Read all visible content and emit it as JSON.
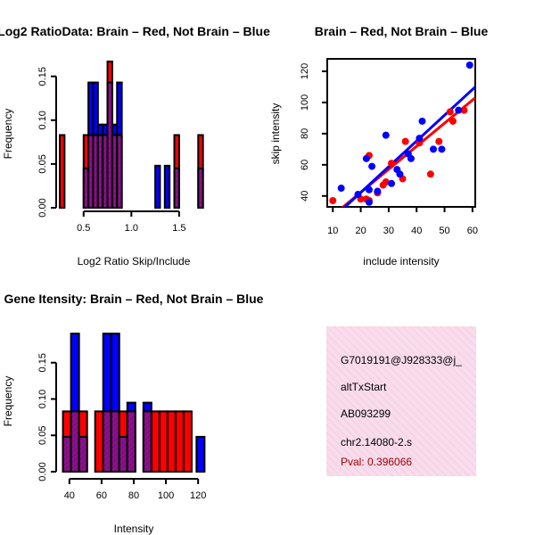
{
  "colors": {
    "red": "#ff0000",
    "blue": "#0000ff",
    "overlap": "#8b108b",
    "info_bg": "#f8dcec"
  },
  "chart_data": [
    {
      "type": "bar",
      "title": "Log2 RatioData: Brain – Red, Not Brain – Blue",
      "xlabel": "Log2 Ratio Skip/Include",
      "ylabel": "Frequency",
      "xlim": [
        0.25,
        1.8
      ],
      "ylim": [
        0,
        0.17
      ],
      "xticks": [
        "0.5",
        "1.0",
        "1.5"
      ],
      "xtick_values": [
        0.5,
        1.0,
        1.5
      ],
      "yticks": [
        "0.00",
        "0.05",
        "0.10",
        "0.15"
      ],
      "ytick_values": [
        0,
        0.05,
        0.1,
        0.15
      ],
      "bin_width": 0.05,
      "bins": [
        {
          "start": 0.25,
          "red": 0.083,
          "blue": 0
        },
        {
          "start": 0.5,
          "red": 0.083,
          "blue": 0.045
        },
        {
          "start": 0.55,
          "red": 0.083,
          "blue": 0.143
        },
        {
          "start": 0.6,
          "red": 0.083,
          "blue": 0.143
        },
        {
          "start": 0.65,
          "red": 0.083,
          "blue": 0.095
        },
        {
          "start": 0.7,
          "red": 0.083,
          "blue": 0.095
        },
        {
          "start": 0.75,
          "red": 0.167,
          "blue": 0.143
        },
        {
          "start": 0.8,
          "red": 0.083,
          "blue": 0.095
        },
        {
          "start": 0.85,
          "red": 0.083,
          "blue": 0.143
        },
        {
          "start": 1.25,
          "red": 0,
          "blue": 0.048
        },
        {
          "start": 1.35,
          "red": 0,
          "blue": 0.048
        },
        {
          "start": 1.45,
          "red": 0.083,
          "blue": 0.045
        },
        {
          "start": 1.7,
          "red": 0.083,
          "blue": 0.045
        }
      ]
    },
    {
      "type": "scatter",
      "title": "Brain – Red, Not Brain – Blue",
      "xlabel": "include intensity",
      "ylabel": "skip intensity",
      "xlim": [
        8,
        61
      ],
      "ylim": [
        33,
        128
      ],
      "xticks": [
        "10",
        "20",
        "30",
        "40",
        "50",
        "60"
      ],
      "xtick_values": [
        10,
        20,
        30,
        40,
        50,
        60
      ],
      "yticks": [
        "40",
        "60",
        "80",
        "100",
        "120"
      ],
      "ytick_values": [
        40,
        60,
        80,
        100,
        120
      ],
      "series": [
        {
          "name": "Brain",
          "color": "red",
          "points": [
            [
              10,
              37
            ],
            [
              20,
              38
            ],
            [
              22,
              38
            ],
            [
              23,
              37
            ],
            [
              23,
              66
            ],
            [
              26,
              42
            ],
            [
              28,
              47
            ],
            [
              29,
              49
            ],
            [
              31,
              61
            ],
            [
              35,
              51
            ],
            [
              36,
              75
            ],
            [
              41,
              74
            ],
            [
              45,
              54
            ],
            [
              48,
              75
            ],
            [
              52,
              94
            ],
            [
              53,
              88
            ],
            [
              57,
              95
            ]
          ],
          "fit": [
            [
              10,
              27.5
            ],
            [
              61,
              103
            ]
          ]
        },
        {
          "name": "Not Brain",
          "color": "blue",
          "points": [
            [
              13,
              45
            ],
            [
              19,
              41
            ],
            [
              22,
              64
            ],
            [
              23,
              44
            ],
            [
              23,
              36
            ],
            [
              24,
              59
            ],
            [
              26,
              43
            ],
            [
              29,
              79
            ],
            [
              31,
              48
            ],
            [
              33,
              57
            ],
            [
              34,
              54
            ],
            [
              37,
              67
            ],
            [
              38,
              64
            ],
            [
              41,
              77
            ],
            [
              42,
              88
            ],
            [
              46,
              70
            ],
            [
              49,
              70
            ],
            [
              55,
              95
            ],
            [
              59,
              124
            ]
          ],
          "fit": [
            [
              12,
              29
            ],
            [
              61,
              110
            ]
          ]
        }
      ]
    },
    {
      "type": "bar",
      "title": "Gene Itensity: Brain – Red, Not Brain – Blue",
      "xlabel": "Intensity",
      "ylabel": "Frequency",
      "xlim": [
        34,
        126
      ],
      "ylim": [
        0,
        0.2
      ],
      "xticks": [
        "40",
        "60",
        "80",
        "100",
        "120"
      ],
      "xtick_values": [
        40,
        60,
        80,
        100,
        120
      ],
      "yticks": [
        "0.00",
        "0.05",
        "0.10",
        "0.15"
      ],
      "ytick_values": [
        0,
        0.05,
        0.1,
        0.15
      ],
      "bin_width": 5,
      "bins": [
        {
          "start": 36,
          "red": 0.083,
          "blue": 0.048
        },
        {
          "start": 41,
          "red": 0.083,
          "blue": 0.19
        },
        {
          "start": 46,
          "red": 0.083,
          "blue": 0.048
        },
        {
          "start": 56,
          "red": 0.083,
          "blue": 0
        },
        {
          "start": 61,
          "red": 0.083,
          "blue": 0.19
        },
        {
          "start": 66,
          "red": 0.083,
          "blue": 0.19
        },
        {
          "start": 71,
          "red": 0.083,
          "blue": 0.048
        },
        {
          "start": 76,
          "red": 0.083,
          "blue": 0.095
        },
        {
          "start": 86,
          "red": 0.083,
          "blue": 0.095
        },
        {
          "start": 91,
          "red": 0.083,
          "blue": 0
        },
        {
          "start": 96,
          "red": 0.083,
          "blue": 0
        },
        {
          "start": 101,
          "red": 0.083,
          "blue": 0
        },
        {
          "start": 106,
          "red": 0.083,
          "blue": 0
        },
        {
          "start": 111,
          "red": 0.083,
          "blue": 0
        },
        {
          "start": 119,
          "red": 0,
          "blue": 0.048
        }
      ]
    }
  ],
  "info": {
    "event_id": "G7019191@J928333@j_",
    "event_type": "altTxStart",
    "accession": "AB093299",
    "cluster": "chr2.14080-2.s",
    "pval": "Pval: 0.396066"
  }
}
